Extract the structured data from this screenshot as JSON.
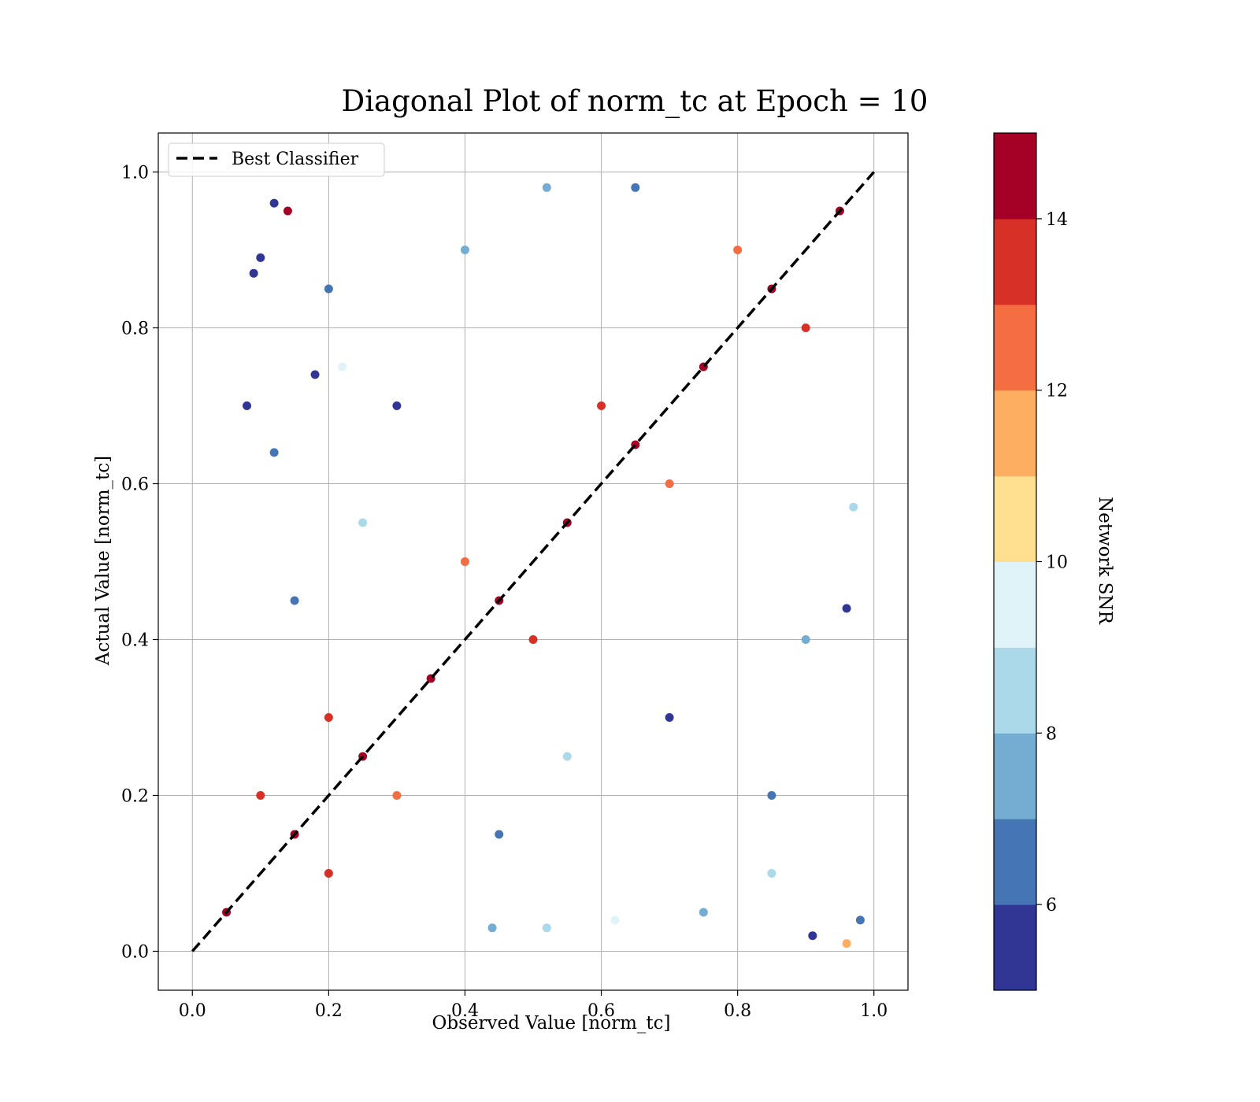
{
  "chart_data": {
    "type": "scatter",
    "title": "Diagonal Plot of norm_tc at Epoch = 10",
    "xlabel": "Observed Value [norm_tc]",
    "ylabel": "Actual Value [norm_tc]",
    "xlim": [
      -0.05,
      1.05
    ],
    "ylim": [
      -0.05,
      1.05
    ],
    "xticks": [
      "0.0",
      "0.2",
      "0.4",
      "0.6",
      "0.8",
      "1.0"
    ],
    "yticks": [
      "0.0",
      "0.2",
      "0.4",
      "0.6",
      "0.8",
      "1.0"
    ],
    "grid": true,
    "legend": {
      "placement": "top-left",
      "entries": [
        {
          "label": "Best Classifier",
          "style": "dashed",
          "color": "#000000"
        }
      ]
    },
    "reference_line": {
      "name": "Best Classifier",
      "x": [
        0,
        1
      ],
      "y": [
        0,
        1
      ]
    },
    "colorbar": {
      "label": "Network SNR",
      "range": [
        5,
        15
      ],
      "ticks": [
        "6",
        "8",
        "10",
        "12",
        "14"
      ],
      "colors": [
        "#313695",
        "#4575b4",
        "#74add1",
        "#abd9e9",
        "#e0f3f8",
        "#fee090",
        "#fdae61",
        "#f46d43",
        "#d73027",
        "#a50026"
      ]
    },
    "series": [
      {
        "points": [
          [
            0.05,
            0.05,
            15
          ],
          [
            0.15,
            0.15,
            15
          ],
          [
            0.25,
            0.25,
            15
          ],
          [
            0.35,
            0.35,
            15
          ],
          [
            0.45,
            0.45,
            15
          ],
          [
            0.55,
            0.55,
            15
          ],
          [
            0.65,
            0.65,
            15
          ],
          [
            0.75,
            0.75,
            15
          ],
          [
            0.85,
            0.85,
            15
          ],
          [
            0.95,
            0.95,
            15
          ],
          [
            0.1,
            0.2,
            13
          ],
          [
            0.2,
            0.3,
            13
          ],
          [
            0.4,
            0.5,
            12
          ],
          [
            0.6,
            0.7,
            13
          ],
          [
            0.8,
            0.9,
            12
          ],
          [
            0.2,
            0.1,
            13
          ],
          [
            0.3,
            0.2,
            12
          ],
          [
            0.5,
            0.4,
            13
          ],
          [
            0.7,
            0.6,
            12
          ],
          [
            0.9,
            0.8,
            13
          ],
          [
            0.3,
            0.7,
            5
          ],
          [
            0.2,
            0.85,
            6
          ],
          [
            0.4,
            0.9,
            7
          ],
          [
            0.25,
            0.55,
            8
          ],
          [
            0.15,
            0.45,
            6
          ],
          [
            0.7,
            0.3,
            5
          ],
          [
            0.85,
            0.2,
            6
          ],
          [
            0.9,
            0.4,
            7
          ],
          [
            0.55,
            0.25,
            8
          ],
          [
            0.45,
            0.15,
            6
          ],
          [
            0.12,
            0.96,
            5
          ],
          [
            0.1,
            0.89,
            5
          ],
          [
            0.09,
            0.87,
            5
          ],
          [
            0.97,
            0.57,
            8
          ],
          [
            0.96,
            0.44,
            5
          ],
          [
            0.14,
            0.95,
            14
          ],
          [
            0.96,
            0.01,
            11
          ],
          [
            0.98,
            0.04,
            6
          ],
          [
            0.12,
            0.64,
            6
          ],
          [
            0.08,
            0.7,
            5
          ],
          [
            0.22,
            0.75,
            9
          ],
          [
            0.18,
            0.74,
            5
          ],
          [
            0.65,
            0.98,
            6
          ],
          [
            0.52,
            0.98,
            7
          ],
          [
            0.91,
            0.02,
            5
          ],
          [
            0.85,
            0.1,
            8
          ],
          [
            0.75,
            0.05,
            7
          ],
          [
            0.62,
            0.04,
            9
          ],
          [
            0.52,
            0.03,
            8
          ],
          [
            0.44,
            0.03,
            7
          ]
        ]
      }
    ]
  }
}
